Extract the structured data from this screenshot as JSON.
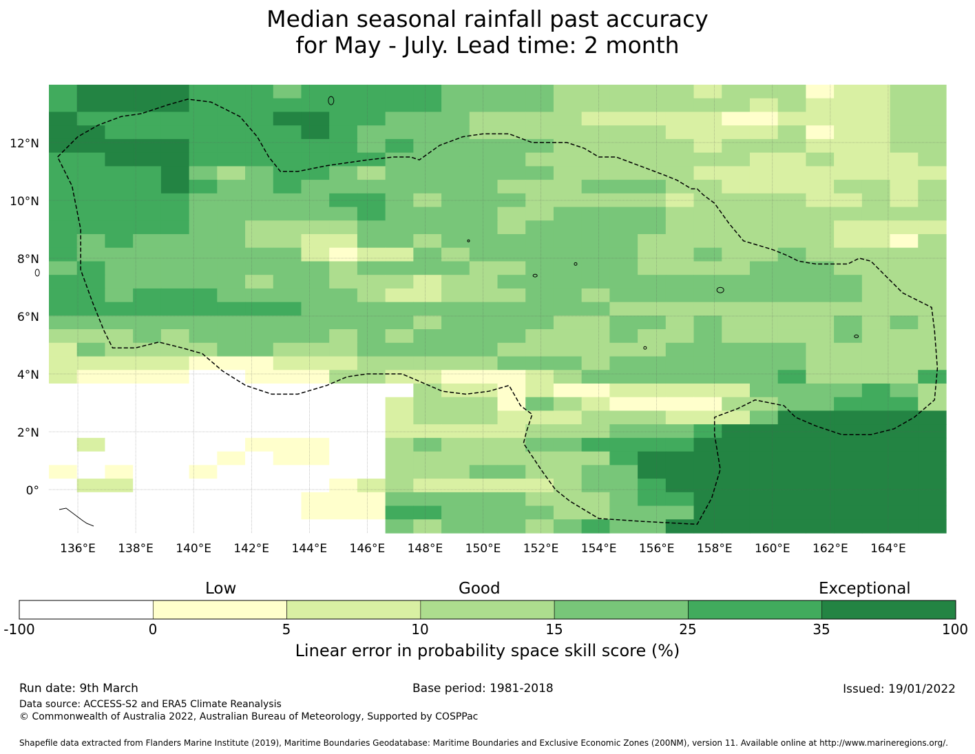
{
  "title": {
    "line1": "Median seasonal rainfall past accuracy",
    "line2": "for May - July. Lead time: 2 month"
  },
  "map": {
    "lat_labels": [
      "12°N",
      "10°N",
      "8°N",
      "6°N",
      "4°N",
      "2°N",
      "0°"
    ],
    "lon_labels": [
      "136°E",
      "138°E",
      "140°E",
      "142°E",
      "144°E",
      "146°E",
      "148°E",
      "150°E",
      "152°E",
      "154°E",
      "156°E",
      "158°E",
      "160°E",
      "162°E",
      "164°E"
    ],
    "lon_range": [
      135.0,
      166.0
    ],
    "lat_range": [
      -1.5,
      14.0
    ],
    "skill_rows": [
      "56666555455555444433333233312233",
      "56666555555555444433333332322233",
      "65555555665544433332222211222233",
      "66555555565444433333332222312233",
      "66666555555454444433333233322233",
      "55666555555544444333333332232223",
      "55556434554344444433333222222222",
      "55556544544444443334443322223323",
      "55555444445543444333332333322323",
      "55555444444544443344443333333333",
      "55555443333444443444443333332222",
      "54544443322443444444433333332213",
      "54444444421224344444433433433333",
      "45444444443444433444433334443333",
      "55444443443332334444444444444333",
      "55455544444322333443444444444333",
      "55555555544444444444333333333333",
      "44444444444443444433443433334343",
      "33343444443434444333433433334333",
      "24333344333444443333334444433333",
      "22222111222333334443444444433333",
      "21111001113322111234444444533335",
      "00000000000003221211222224444543",
      "00000000000023331432111133445553",
      "00000000000023332223332224666666",
      "00000000000022222333444566666666",
      "02000001110034333445555666666666",
      "00000010110033333333566666666666",
      "10100100000033344334466666666666",
      "02200000001232222234456666666666",
      "00000000011144444333455666666666",
      "00000000011155444433444666666666",
      "00000000000043444345446666666666"
    ],
    "eez_path_lonlat": [
      [
        138.2,
        13.0
      ],
      [
        137.5,
        12.9
      ],
      [
        136.7,
        12.6
      ],
      [
        136.0,
        12.2
      ],
      [
        135.3,
        11.5
      ],
      [
        135.8,
        10.5
      ],
      [
        136.1,
        9.0
      ],
      [
        136.1,
        7.6
      ],
      [
        136.5,
        6.5
      ],
      [
        136.9,
        5.5
      ],
      [
        137.2,
        4.9
      ],
      [
        138.0,
        4.9
      ],
      [
        138.8,
        5.1
      ],
      [
        139.6,
        4.9
      ],
      [
        140.3,
        4.7
      ],
      [
        141.0,
        4.1
      ],
      [
        141.8,
        3.6
      ],
      [
        142.7,
        3.3
      ],
      [
        143.6,
        3.3
      ],
      [
        144.6,
        3.6
      ],
      [
        145.3,
        3.9
      ],
      [
        146.0,
        4.0
      ],
      [
        146.6,
        4.0
      ],
      [
        147.2,
        4.0
      ],
      [
        147.9,
        3.7
      ],
      [
        148.6,
        3.4
      ],
      [
        149.4,
        3.3
      ],
      [
        150.2,
        3.4
      ],
      [
        150.9,
        3.6
      ],
      [
        151.3,
        2.9
      ],
      [
        151.7,
        2.6
      ],
      [
        151.5,
        2.0
      ],
      [
        151.4,
        1.6
      ],
      [
        152.0,
        0.7
      ],
      [
        152.5,
        0.0
      ],
      [
        153.0,
        -0.4
      ],
      [
        154.0,
        -1.0
      ],
      [
        155.5,
        -1.1
      ],
      [
        157.4,
        -1.2
      ],
      [
        157.9,
        -0.3
      ],
      [
        158.2,
        0.7
      ],
      [
        158.0,
        1.9
      ],
      [
        158.0,
        2.5
      ],
      [
        158.8,
        2.8
      ],
      [
        159.4,
        3.1
      ],
      [
        160.4,
        2.9
      ],
      [
        160.8,
        2.5
      ],
      [
        161.5,
        2.2
      ],
      [
        162.4,
        1.9
      ],
      [
        163.4,
        1.9
      ],
      [
        164.2,
        2.1
      ],
      [
        164.9,
        2.5
      ],
      [
        165.6,
        3.1
      ],
      [
        165.7,
        4.2
      ],
      [
        165.6,
        5.5
      ],
      [
        165.5,
        6.3
      ],
      [
        164.5,
        6.8
      ],
      [
        163.9,
        7.4
      ],
      [
        163.4,
        7.9
      ],
      [
        163.0,
        8.0
      ],
      [
        162.6,
        7.8
      ],
      [
        161.5,
        7.8
      ],
      [
        160.9,
        7.9
      ],
      [
        160.5,
        8.1
      ],
      [
        160.0,
        8.3
      ],
      [
        159.0,
        8.6
      ],
      [
        158.5,
        9.2
      ],
      [
        158.0,
        9.9
      ],
      [
        157.6,
        10.2
      ],
      [
        157.4,
        10.4
      ],
      [
        157.2,
        10.4
      ],
      [
        156.7,
        10.7
      ],
      [
        156.2,
        10.9
      ],
      [
        155.4,
        11.2
      ],
      [
        154.6,
        11.5
      ],
      [
        154.0,
        11.5
      ],
      [
        153.5,
        11.8
      ],
      [
        152.9,
        12.0
      ],
      [
        152.0,
        12.0
      ],
      [
        151.7,
        12.0
      ],
      [
        150.9,
        12.3
      ],
      [
        150.0,
        12.3
      ],
      [
        149.3,
        12.2
      ],
      [
        148.5,
        11.9
      ],
      [
        147.8,
        11.4
      ],
      [
        147.5,
        11.5
      ],
      [
        146.9,
        11.5
      ],
      [
        146.0,
        11.4
      ],
      [
        144.6,
        11.2
      ],
      [
        143.6,
        11.0
      ],
      [
        143.0,
        11.0
      ],
      [
        142.6,
        11.5
      ],
      [
        142.2,
        12.2
      ],
      [
        141.6,
        12.9
      ],
      [
        141.2,
        13.1
      ],
      [
        140.6,
        13.4
      ],
      [
        139.8,
        13.5
      ],
      [
        139.1,
        13.3
      ],
      [
        138.5,
        13.1
      ],
      [
        138.2,
        13.0
      ]
    ]
  },
  "colorbar": {
    "low_label": "Low",
    "good_label": "Good",
    "exceptional_label": "Exceptional",
    "ticks": [
      "-100",
      "0",
      "5",
      "10",
      "15",
      "25",
      "35",
      "100"
    ],
    "colors": [
      "#ffffff",
      "#ffffcc",
      "#d9f0a3",
      "#addd8e",
      "#78c679",
      "#41ab5d",
      "#238443"
    ],
    "axis_title": "Linear error in probability space skill score (%)"
  },
  "footer": {
    "run_date": "Run date: 9th March",
    "base_period": "Base period: 1981-2018",
    "issued": "Issued: 19/01/2022",
    "data_source": "Data source: ACCESS-S2 and ERA5 Climate Reanalysis",
    "copyright": "© Commonwealth of Australia 2022, Australian Bureau of Meteorology, Supported by COSPPac",
    "shapefile": "Shapefile data extracted from Flanders Marine Institute (2019), Maritime Boundaries Geodatabase: Maritime Boundaries and Exclusive Economic Zones (200NM), version 11. Available online at http://www.marineregions.org/."
  }
}
